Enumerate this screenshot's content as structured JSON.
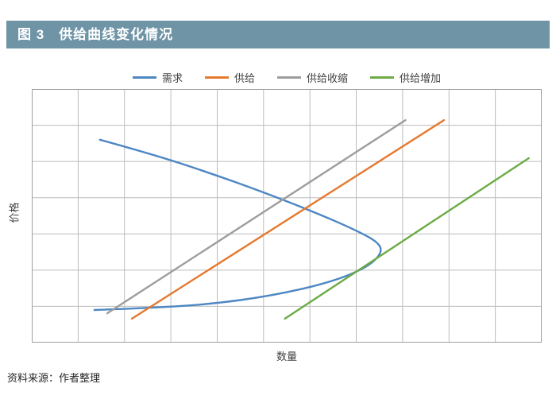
{
  "header": {
    "title": "图 3　供给曲线变化情况"
  },
  "footer": {
    "source": "资料来源：作者整理"
  },
  "chart_data": {
    "type": "line",
    "title": "图 3　供给曲线变化情况",
    "xlabel": "数量",
    "ylabel": "价格",
    "xlim": [
      0,
      11
    ],
    "ylim": [
      0,
      7
    ],
    "grid": true,
    "legend_position": "top",
    "series": [
      {
        "id": "demand",
        "name": "需求",
        "color": "#4d87c3",
        "points": [
          [
            1.47,
            5.6
          ],
          [
            2.6,
            5.2
          ],
          [
            3.8,
            4.7
          ],
          [
            5.0,
            4.15
          ],
          [
            6.1,
            3.6
          ],
          [
            7.0,
            3.1
          ],
          [
            7.5,
            2.75
          ],
          [
            7.55,
            2.45
          ],
          [
            7.2,
            2.05
          ],
          [
            6.4,
            1.65
          ],
          [
            5.2,
            1.3
          ],
          [
            3.8,
            1.05
          ],
          [
            2.4,
            0.95
          ],
          [
            1.35,
            0.9
          ]
        ]
      },
      {
        "id": "supply",
        "name": "供给",
        "color": "#e5792f",
        "points": [
          [
            2.16,
            0.66
          ],
          [
            8.89,
            6.14
          ]
        ]
      },
      {
        "id": "supply-contraction",
        "name": "供给收缩",
        "color": "#9d9d9d",
        "points": [
          [
            1.63,
            0.81
          ],
          [
            8.06,
            6.14
          ]
        ]
      },
      {
        "id": "supply-increase",
        "name": "供给增加",
        "color": "#6cab45",
        "points": [
          [
            5.46,
            0.66
          ],
          [
            10.72,
            5.09
          ]
        ]
      }
    ]
  }
}
